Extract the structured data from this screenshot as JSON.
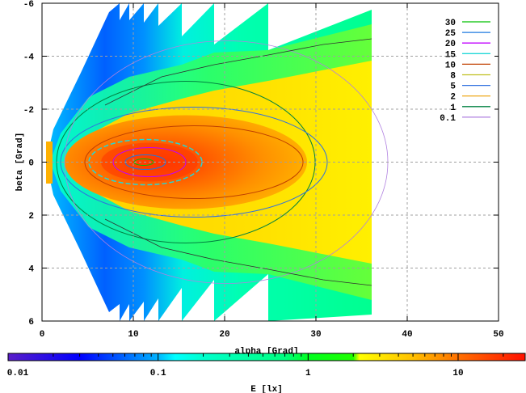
{
  "chart_data": {
    "type": "heatmap",
    "title": "",
    "xlabel": "alpha [Grad]",
    "ylabel": "beta [Grad]",
    "xlim": [
      0,
      50
    ],
    "ylim": [
      6,
      -6
    ],
    "xticks": [
      0,
      10,
      20,
      30,
      40,
      50
    ],
    "yticks": [
      -6,
      -4,
      -2,
      0,
      2,
      4,
      6
    ],
    "xtick_labels": [
      "0",
      "10",
      "20",
      "30",
      "40",
      "50"
    ],
    "ytick_labels": [
      "-6",
      "-4",
      "-2",
      "0",
      "2",
      "4",
      "6"
    ],
    "grid": true,
    "colorbar": {
      "label": "E [lx]",
      "scale": "log",
      "range": [
        0.01,
        28
      ],
      "ticks": [
        0.01,
        0.1,
        1,
        10
      ],
      "tick_labels": [
        "0.01",
        "0.1",
        "1",
        "10"
      ],
      "stops": [
        {
          "value": 0.01,
          "color": "#5a1ec8"
        },
        {
          "value": 0.03,
          "color": "#0000ff"
        },
        {
          "value": 0.1,
          "color": "#00b4ff"
        },
        {
          "value": 0.13,
          "color": "#00ffff"
        },
        {
          "value": 0.2,
          "color": "#00ffcc"
        },
        {
          "value": 0.7,
          "color": "#00ff80"
        },
        {
          "value": 1.0,
          "color": "#00ff20"
        },
        {
          "value": 2.0,
          "color": "#20ff00"
        },
        {
          "value": 2.2,
          "color": "#ffff00"
        },
        {
          "value": 5,
          "color": "#ffc000"
        },
        {
          "value": 10,
          "color": "#ff7000"
        },
        {
          "value": 28,
          "color": "#ff1000"
        }
      ]
    },
    "legend_position": "top-right",
    "contour_levels": [
      {
        "label": "30",
        "color": "#00c000"
      },
      {
        "label": "25",
        "color": "#1e78e0"
      },
      {
        "label": "20",
        "color": "#c000ff"
      },
      {
        "label": "15",
        "color": "#20d8d8"
      },
      {
        "label": "10",
        "color": "#c04000"
      },
      {
        "label": "8",
        "color": "#c0c020"
      },
      {
        "label": "5",
        "color": "#3070e0"
      },
      {
        "label": "2",
        "color": "#f0b030"
      },
      {
        "label": "1",
        "color": "#008040"
      },
      {
        "label": "0.1",
        "color": "#b080e0"
      }
    ]
  }
}
